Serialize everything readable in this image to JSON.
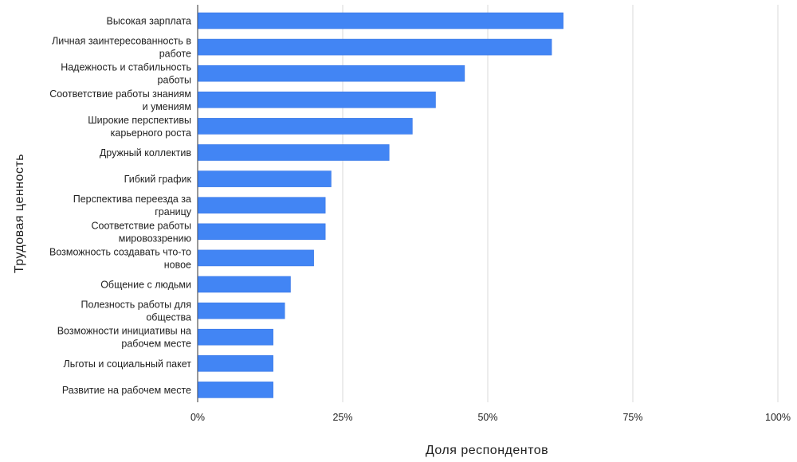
{
  "chart_data": {
    "type": "bar",
    "orientation": "horizontal",
    "title": "",
    "xlabel": "Доля респондентов",
    "ylabel": "Трудовая ценность",
    "xlim": [
      0,
      100
    ],
    "x_ticks": [
      "0%",
      "25%",
      "50%",
      "75%",
      "100%"
    ],
    "x_tick_values": [
      0,
      25,
      50,
      75,
      100
    ],
    "grid": true,
    "legend": "none",
    "bar_color": "#4285f4",
    "categories": [
      "Высокая зарплата",
      "Личная заинтересованность в работе",
      "Надежность и стабильность работы",
      "Соответствие работы знаниям и умениям",
      "Широкие перспективы карьерного роста",
      "Дружный коллектив",
      "Гибкий график",
      "Перспектива переезда за границу",
      "Соответствие работы мировоззрению",
      "Возможность создавать что-то новое",
      "Общение с людьми",
      "Полезность работы для общества",
      "Возможности инициативы на рабочем месте",
      "Льготы и социальный пакет",
      "Развитие на рабочем месте"
    ],
    "values": [
      63,
      61,
      46,
      41,
      37,
      33,
      23,
      22,
      22,
      20,
      16,
      15,
      13,
      13,
      13
    ]
  }
}
